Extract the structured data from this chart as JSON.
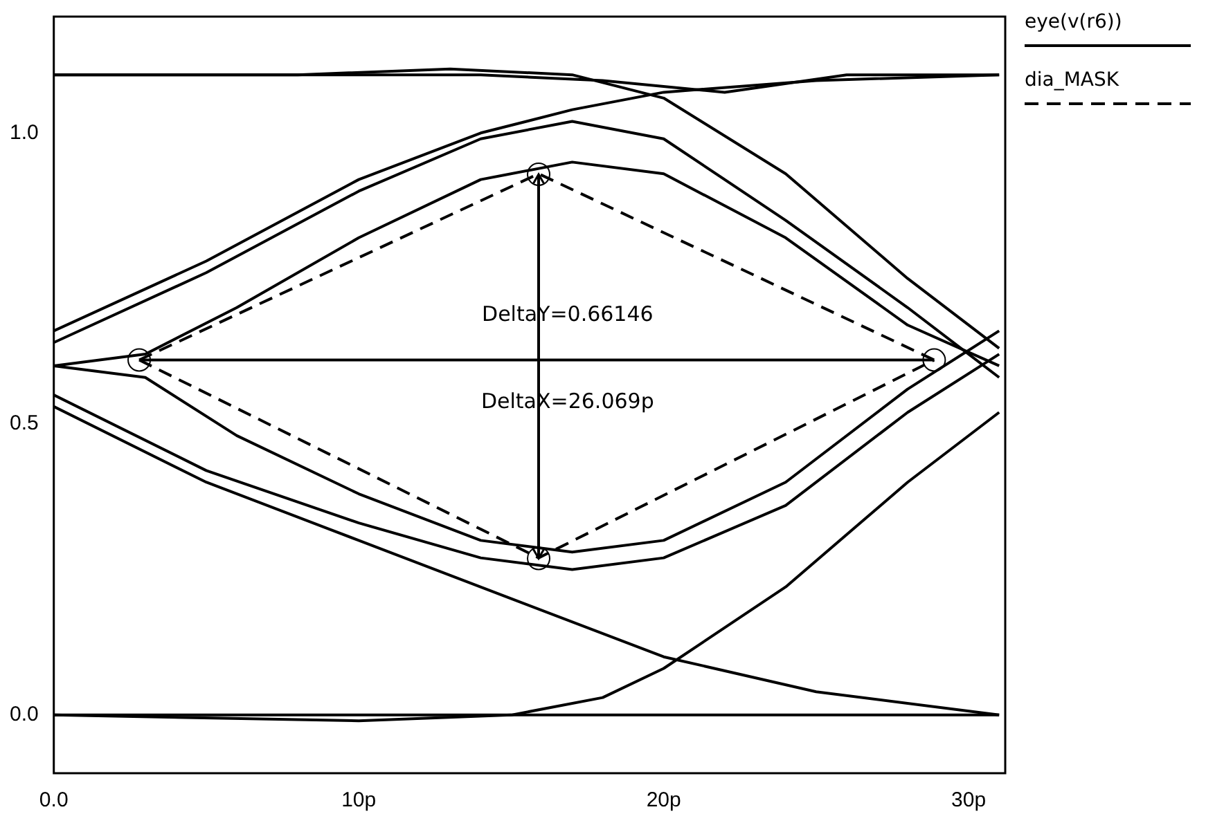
{
  "chart_data": {
    "type": "line",
    "xlim": [
      0,
      31.2
    ],
    "ylim": [
      -0.1,
      1.2
    ],
    "xticks": [
      {
        "value": 0,
        "label": "0.0"
      },
      {
        "value": 10,
        "label": "10p"
      },
      {
        "value": 20,
        "label": "20p"
      },
      {
        "value": 30,
        "label": "30p"
      }
    ],
    "yticks": [
      {
        "value": 0,
        "label": "0.0"
      },
      {
        "value": 0.5,
        "label": "0.5"
      },
      {
        "value": 1,
        "label": "1.0"
      }
    ],
    "grid": false,
    "legend": "right",
    "marker": "none",
    "annotations": [
      "DeltaY=0.66146",
      "DeltaX=26.069p"
    ],
    "series": [
      {
        "name": "eye(v(r6))",
        "color": "#000000",
        "line_style": "solid",
        "x": [
          0,
          5,
          10,
          14,
          17,
          20,
          25,
          31
        ],
        "values": [
          0.66,
          0.78,
          0.92,
          1.0,
          1.04,
          1.07,
          1.09,
          1.1
        ]
      },
      {
        "color": "#000000",
        "line_style": "solid",
        "x": [
          0,
          5,
          10,
          14,
          17,
          20,
          24,
          28,
          31
        ],
        "values": [
          0.64,
          0.76,
          0.9,
          0.99,
          1.02,
          0.99,
          0.85,
          0.7,
          0.58
        ]
      },
      {
        "color": "#000000",
        "line_style": "solid",
        "x": [
          0,
          3,
          6,
          10,
          14,
          17,
          20,
          24,
          28,
          31
        ],
        "values": [
          0.6,
          0.62,
          0.7,
          0.82,
          0.92,
          0.95,
          0.93,
          0.82,
          0.67,
          0.6
        ]
      },
      {
        "color": "#000000",
        "line_style": "solid",
        "x": [
          0,
          8,
          13,
          17,
          20,
          24,
          28,
          31
        ],
        "values": [
          1.1,
          1.1,
          1.11,
          1.1,
          1.06,
          0.93,
          0.75,
          0.63
        ]
      },
      {
        "color": "#000000",
        "line_style": "solid",
        "x": [
          0,
          8,
          14,
          18,
          22,
          26,
          31
        ],
        "values": [
          1.1,
          1.1,
          1.1,
          1.09,
          1.07,
          1.1,
          1.1
        ]
      },
      {
        "color": "#000000",
        "line_style": "solid",
        "x": [
          0,
          5,
          10,
          14,
          17,
          20,
          24,
          28,
          31
        ],
        "values": [
          0.55,
          0.42,
          0.33,
          0.27,
          0.25,
          0.27,
          0.36,
          0.52,
          0.62
        ]
      },
      {
        "color": "#000000",
        "line_style": "solid",
        "x": [
          0,
          3,
          6,
          10,
          14,
          17,
          20,
          24,
          28,
          31
        ],
        "values": [
          0.6,
          0.58,
          0.48,
          0.38,
          0.3,
          0.28,
          0.3,
          0.4,
          0.56,
          0.66
        ]
      },
      {
        "color": "#000000",
        "line_style": "solid",
        "x": [
          0,
          5,
          10,
          15,
          20,
          25,
          31
        ],
        "values": [
          0.53,
          0.4,
          0.3,
          0.2,
          0.1,
          0.04,
          0.0
        ]
      },
      {
        "color": "#000000",
        "line_style": "solid",
        "x": [
          0,
          10,
          15,
          18,
          20,
          24,
          28,
          31
        ],
        "values": [
          0.0,
          -0.01,
          0.0,
          0.03,
          0.08,
          0.22,
          0.4,
          0.52
        ]
      },
      {
        "color": "#000000",
        "line_style": "solid",
        "x": [
          0,
          10,
          20,
          31
        ],
        "values": [
          0.0,
          0.0,
          0.0,
          0.0
        ]
      },
      {
        "color": "#000000",
        "line_style": "solid",
        "marker": "circle",
        "x": [
          2.8,
          28.87
        ],
        "values": [
          0.61,
          0.61
        ]
      },
      {
        "name": "dia_MASK",
        "color": "#000000",
        "line_style": "dashed",
        "x": [
          2.8,
          15.9,
          28.87
        ],
        "values": [
          0.61,
          0.93,
          0.61
        ]
      },
      {
        "color": "#000000",
        "line_style": "dashed",
        "x": [
          2.8,
          15.9,
          28.87
        ],
        "values": [
          0.61,
          0.27,
          0.61
        ]
      }
    ]
  }
}
